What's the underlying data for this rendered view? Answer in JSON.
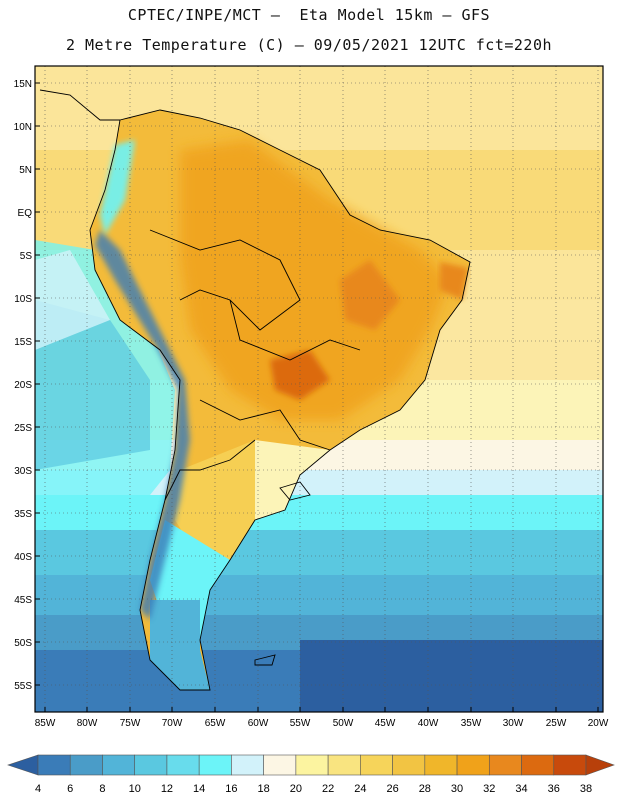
{
  "header": {
    "line1": "CPTEC/INPE/MCT –  Eta Model 15km – GFS",
    "line2": "2 Metre Temperature (C) – 09/05/2021 12UTC fct=220h"
  },
  "map": {
    "lat_labels": [
      "15N",
      "10N",
      "5N",
      "EQ",
      "5S",
      "10S",
      "15S",
      "20S",
      "25S",
      "30S",
      "35S",
      "40S",
      "45S",
      "50S",
      "55S"
    ],
    "lon_labels": [
      "85W",
      "80W",
      "75W",
      "70W",
      "65W",
      "60W",
      "55W",
      "50W",
      "45W",
      "40W",
      "35W",
      "30W",
      "25W",
      "20W"
    ]
  },
  "legend": {
    "colors": [
      "#2c5fa0",
      "#3a7cb8",
      "#4a9cc8",
      "#52b4d8",
      "#5ac8e0",
      "#68dcec",
      "#6cf4f8",
      "#d2f2fa",
      "#fcf6e4",
      "#fcf4a0",
      "#f9e480",
      "#f6d45a",
      "#f2c443",
      "#f0b62a",
      "#f0a21a",
      "#e8881e",
      "#dc6a10",
      "#c84a0c",
      "#b8400a"
    ],
    "labels": [
      "4",
      "6",
      "8",
      "10",
      "12",
      "14",
      "16",
      "18",
      "20",
      "22",
      "24",
      "26",
      "28",
      "30",
      "32",
      "34",
      "36",
      "38"
    ]
  }
}
